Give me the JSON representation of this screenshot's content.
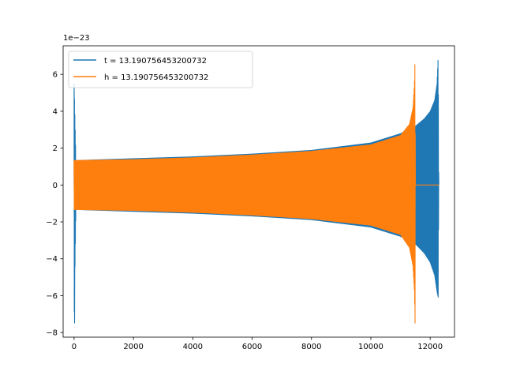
{
  "chart_data": {
    "type": "line",
    "title": "",
    "xlabel": "",
    "ylabel": "",
    "y_offset_label": "1e−23",
    "xlim": [
      -370,
      12820
    ],
    "ylim": [
      -8.25,
      7.55
    ],
    "xticks": [
      0,
      2000,
      4000,
      6000,
      8000,
      10000,
      12000
    ],
    "xtick_labels": [
      "0",
      "2000",
      "4000",
      "6000",
      "8000",
      "10000",
      "12000"
    ],
    "yticks": [
      -8,
      -6,
      -4,
      -2,
      0,
      2,
      4,
      6
    ],
    "ytick_labels": [
      "−8",
      "−6",
      "−4",
      "−2",
      "0",
      "2",
      "4",
      "6"
    ],
    "grid": false,
    "legend_position": "top-left",
    "series": [
      {
        "name": "t = 13.190756453200732",
        "color": "#1f77b4",
        "envelope": {
          "x": [
            0,
            60,
            2000,
            4000,
            6000,
            8000,
            10000,
            11000,
            11500,
            11800,
            12000,
            12150,
            12230,
            12270,
            12290,
            12300
          ],
          "upper": [
            5.5,
            1.35,
            1.45,
            1.55,
            1.7,
            1.9,
            2.3,
            2.8,
            3.2,
            3.6,
            4.0,
            4.6,
            5.5,
            7.0,
            0.0,
            0.0
          ],
          "lower": [
            -7.5,
            -1.35,
            -1.45,
            -1.55,
            -1.7,
            -1.9,
            -2.3,
            -2.8,
            -3.2,
            -3.7,
            -4.2,
            -4.9,
            -5.8,
            -6.1,
            0.0,
            0.0
          ]
        },
        "leading_spike": {
          "x": 0,
          "max": 5.5,
          "min": -7.5
        }
      },
      {
        "name": "h = 13.190756453200732",
        "color": "#ff7f0e",
        "envelope": {
          "x": [
            0,
            2000,
            4000,
            6000,
            8000,
            10000,
            11000,
            11300,
            11420,
            11470,
            11490,
            11500,
            12300
          ],
          "upper": [
            1.35,
            1.4,
            1.5,
            1.65,
            1.85,
            2.2,
            2.7,
            3.3,
            4.2,
            5.5,
            7.0,
            0.0,
            0.0
          ],
          "lower": [
            -1.35,
            -1.4,
            -1.5,
            -1.65,
            -1.85,
            -2.2,
            -2.7,
            -3.4,
            -4.4,
            -5.8,
            -7.5,
            0.0,
            0.0
          ]
        }
      }
    ]
  }
}
